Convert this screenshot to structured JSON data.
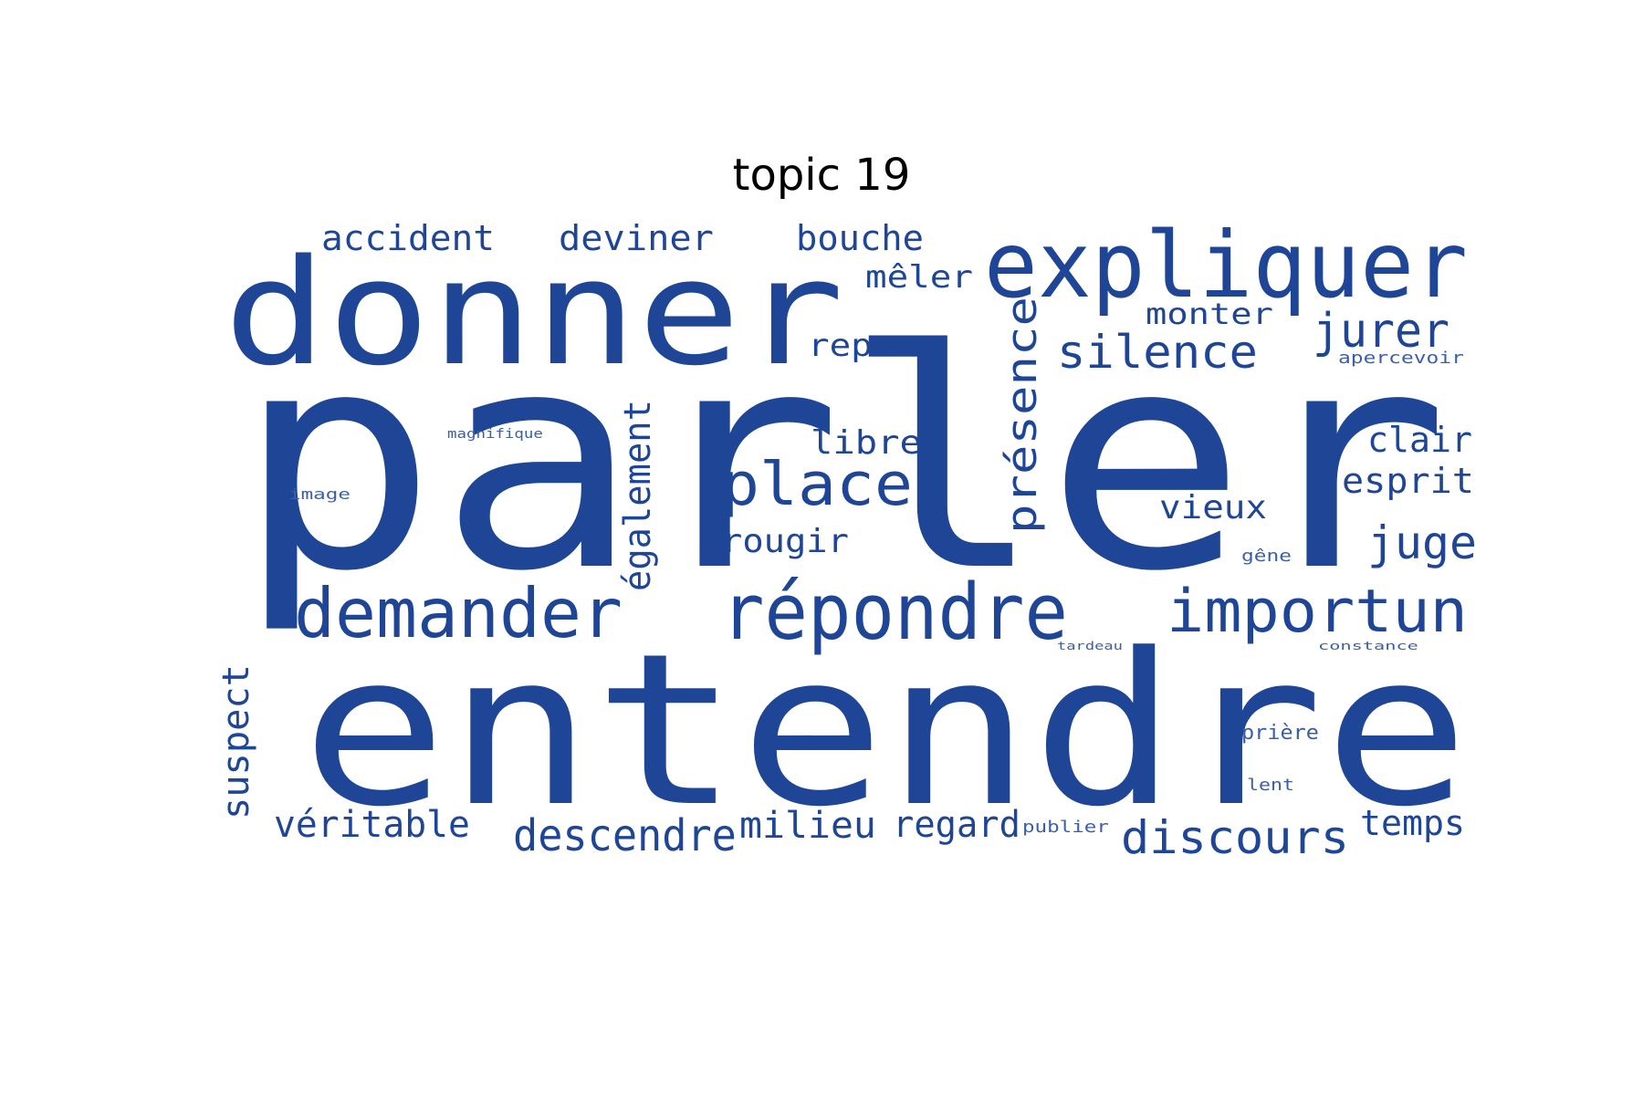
{
  "title": "topic 19",
  "color": "#1f4696",
  "color_light": "#3a5fa8",
  "words": [
    {
      "text": "parler"
    },
    {
      "text": "entendre"
    },
    {
      "text": "donner"
    },
    {
      "text": "expliquer"
    },
    {
      "text": "répondre"
    },
    {
      "text": "demander"
    },
    {
      "text": "importun"
    },
    {
      "text": "place"
    },
    {
      "text": "silence"
    },
    {
      "text": "présence"
    },
    {
      "text": "discours"
    },
    {
      "text": "descendre"
    },
    {
      "text": "juge"
    },
    {
      "text": "jurer"
    },
    {
      "text": "accident"
    },
    {
      "text": "deviner"
    },
    {
      "text": "bouche"
    },
    {
      "text": "également"
    },
    {
      "text": "suspect"
    },
    {
      "text": "véritable"
    },
    {
      "text": "milieu"
    },
    {
      "text": "regard"
    },
    {
      "text": "temps"
    },
    {
      "text": "esprit"
    },
    {
      "text": "clair"
    },
    {
      "text": "rougir"
    },
    {
      "text": "libre"
    },
    {
      "text": "vieux"
    },
    {
      "text": "repos"
    },
    {
      "text": "mêler"
    },
    {
      "text": "monter"
    },
    {
      "text": "prière"
    },
    {
      "text": "apercevoir"
    },
    {
      "text": "magnifique"
    },
    {
      "text": "image"
    },
    {
      "text": "gêne"
    },
    {
      "text": "lent"
    },
    {
      "text": "publier"
    },
    {
      "text": "tardeau"
    },
    {
      "text": "constance"
    }
  ]
}
